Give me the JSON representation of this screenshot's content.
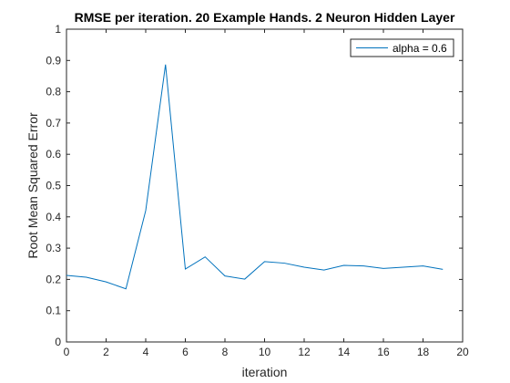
{
  "chart_data": {
    "type": "line",
    "title": "RMSE per iteration. 20 Example Hands. 2 Neuron Hidden Layer",
    "xlabel": "iteration",
    "ylabel": "Root Mean Squared Error",
    "xlim": [
      0,
      20
    ],
    "ylim": [
      0,
      1
    ],
    "x_ticks": [
      "0",
      "2",
      "4",
      "6",
      "8",
      "10",
      "12",
      "14",
      "16",
      "18",
      "20"
    ],
    "y_ticks": [
      "0",
      "0.1",
      "0.2",
      "0.3",
      "0.4",
      "0.5",
      "0.6",
      "0.7",
      "0.8",
      "0.9",
      "1"
    ],
    "grid": false,
    "legend_position": "top-right",
    "series": [
      {
        "name": "alpha = 0.6",
        "color": "#0072BD",
        "x": [
          0,
          1,
          2,
          3,
          4,
          5,
          6,
          7,
          8,
          9,
          10,
          11,
          12,
          13,
          14,
          15,
          16,
          17,
          18,
          19
        ],
        "y": [
          0.213,
          0.207,
          0.192,
          0.17,
          0.42,
          0.887,
          0.233,
          0.272,
          0.211,
          0.201,
          0.257,
          0.252,
          0.239,
          0.23,
          0.245,
          0.243,
          0.235,
          0.239,
          0.243,
          0.232
        ]
      }
    ]
  }
}
